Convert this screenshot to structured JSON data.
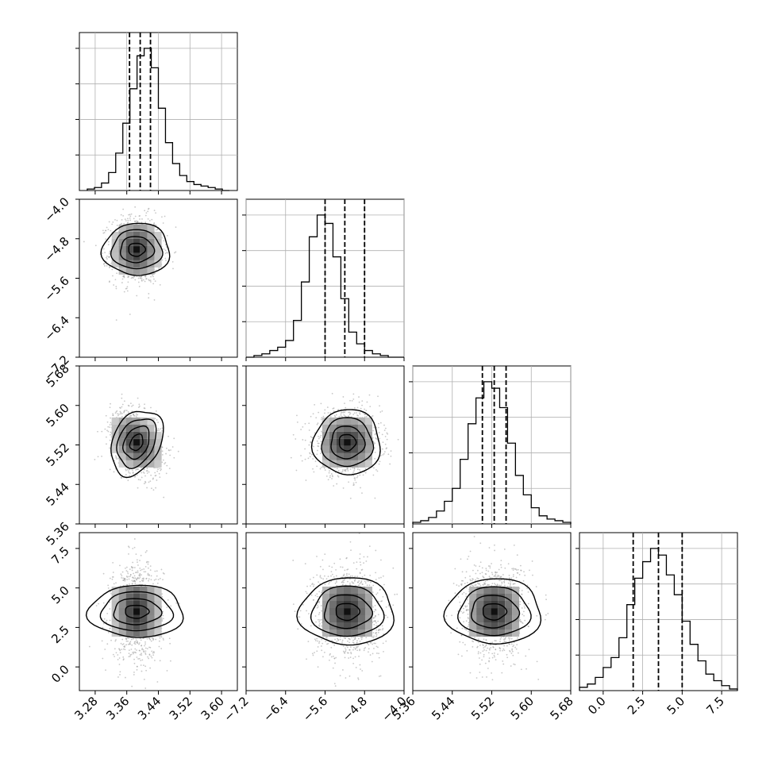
{
  "chart_data": {
    "type": "corner",
    "title": "",
    "parameters": [
      {
        "index": 0,
        "range": [
          3.24,
          3.64
        ],
        "ticks": [
          "3.28",
          "3.36",
          "3.44",
          "3.52",
          "3.60"
        ],
        "tick_values": [
          3.28,
          3.36,
          3.44,
          3.52,
          3.6
        ],
        "quantiles": [
          3.367,
          3.394,
          3.42
        ]
      },
      {
        "index": 1,
        "range": [
          -7.2,
          -4.0
        ],
        "ticks": [
          "−7.2",
          "−6.4",
          "−5.6",
          "−4.8",
          "−4.0"
        ],
        "tick_values": [
          -7.2,
          -6.4,
          -5.6,
          -4.8,
          -4.0
        ],
        "quantiles": [
          -5.6,
          -5.2,
          -4.8
        ]
      },
      {
        "index": 2,
        "range": [
          5.36,
          5.68
        ],
        "ticks": [
          "5.36",
          "5.44",
          "5.52",
          "5.60",
          "5.68"
        ],
        "tick_values": [
          5.36,
          5.44,
          5.52,
          5.6,
          5.68
        ],
        "quantiles": [
          5.501,
          5.525,
          5.549
        ]
      },
      {
        "index": 3,
        "range": [
          -1.5,
          8.5
        ],
        "ticks": [
          "0.0",
          "2.5",
          "5.0",
          "7.5"
        ],
        "tick_values": [
          0.0,
          2.5,
          5.0,
          7.5
        ],
        "quantiles": [
          1.9,
          3.5,
          5.0
        ]
      }
    ],
    "histograms": [
      {
        "param": 0,
        "bin_edges_range": [
          3.26,
          3.62
        ],
        "counts": [
          1,
          2,
          5,
          12,
          25,
          45,
          68,
          90,
          95,
          82,
          55,
          32,
          18,
          10,
          6,
          4,
          3,
          2,
          1,
          0
        ]
      },
      {
        "param": 1,
        "bin_edges_range": [
          -7.2,
          -4.0
        ],
        "counts": [
          0,
          1,
          2,
          4,
          6,
          10,
          22,
          45,
          72,
          85,
          80,
          60,
          35,
          15,
          8,
          4,
          2,
          1,
          0,
          0
        ]
      },
      {
        "param": 2,
        "bin_edges_range": [
          5.36,
          5.68
        ],
        "counts": [
          1,
          2,
          4,
          8,
          14,
          22,
          40,
          62,
          78,
          88,
          84,
          72,
          50,
          30,
          18,
          10,
          5,
          3,
          2,
          1
        ]
      },
      {
        "param": 3,
        "bin_edges_range": [
          -1.5,
          8.5
        ],
        "counts": [
          2,
          4,
          8,
          14,
          20,
          32,
          52,
          68,
          78,
          86,
          82,
          70,
          58,
          42,
          28,
          18,
          10,
          6,
          3,
          1
        ]
      }
    ],
    "pairs": [
      {
        "x_param": 0,
        "y_param": 1,
        "center": [
          3.385,
          -5.02
        ],
        "sigma": [
          0.033,
          0.34
        ],
        "rho": 0.0
      },
      {
        "x_param": 0,
        "y_param": 2,
        "center": [
          3.385,
          5.525
        ],
        "sigma": [
          0.033,
          0.033
        ],
        "rho": -0.3
      },
      {
        "x_param": 1,
        "y_param": 2,
        "center": [
          -5.15,
          5.525
        ],
        "sigma": [
          0.34,
          0.033
        ],
        "rho": 0.0
      },
      {
        "x_param": 0,
        "y_param": 3,
        "center": [
          3.385,
          3.5
        ],
        "sigma": [
          0.033,
          1.5
        ],
        "rho": 0.0
      },
      {
        "x_param": 1,
        "y_param": 3,
        "center": [
          -5.15,
          3.5
        ],
        "sigma": [
          0.34,
          1.5
        ],
        "rho": 0.0
      },
      {
        "x_param": 2,
        "y_param": 3,
        "center": [
          5.525,
          3.5
        ],
        "sigma": [
          0.033,
          1.5
        ],
        "rho": 0.0
      }
    ],
    "contour_levels_sigma": [
      0.5,
      1.0,
      1.5,
      2.0
    ],
    "grid": true,
    "colors": {
      "scatter": "#9a9a9a",
      "density_dark": "#3a3a3a",
      "line": "#000000",
      "grid": "#b0b0b0"
    }
  }
}
